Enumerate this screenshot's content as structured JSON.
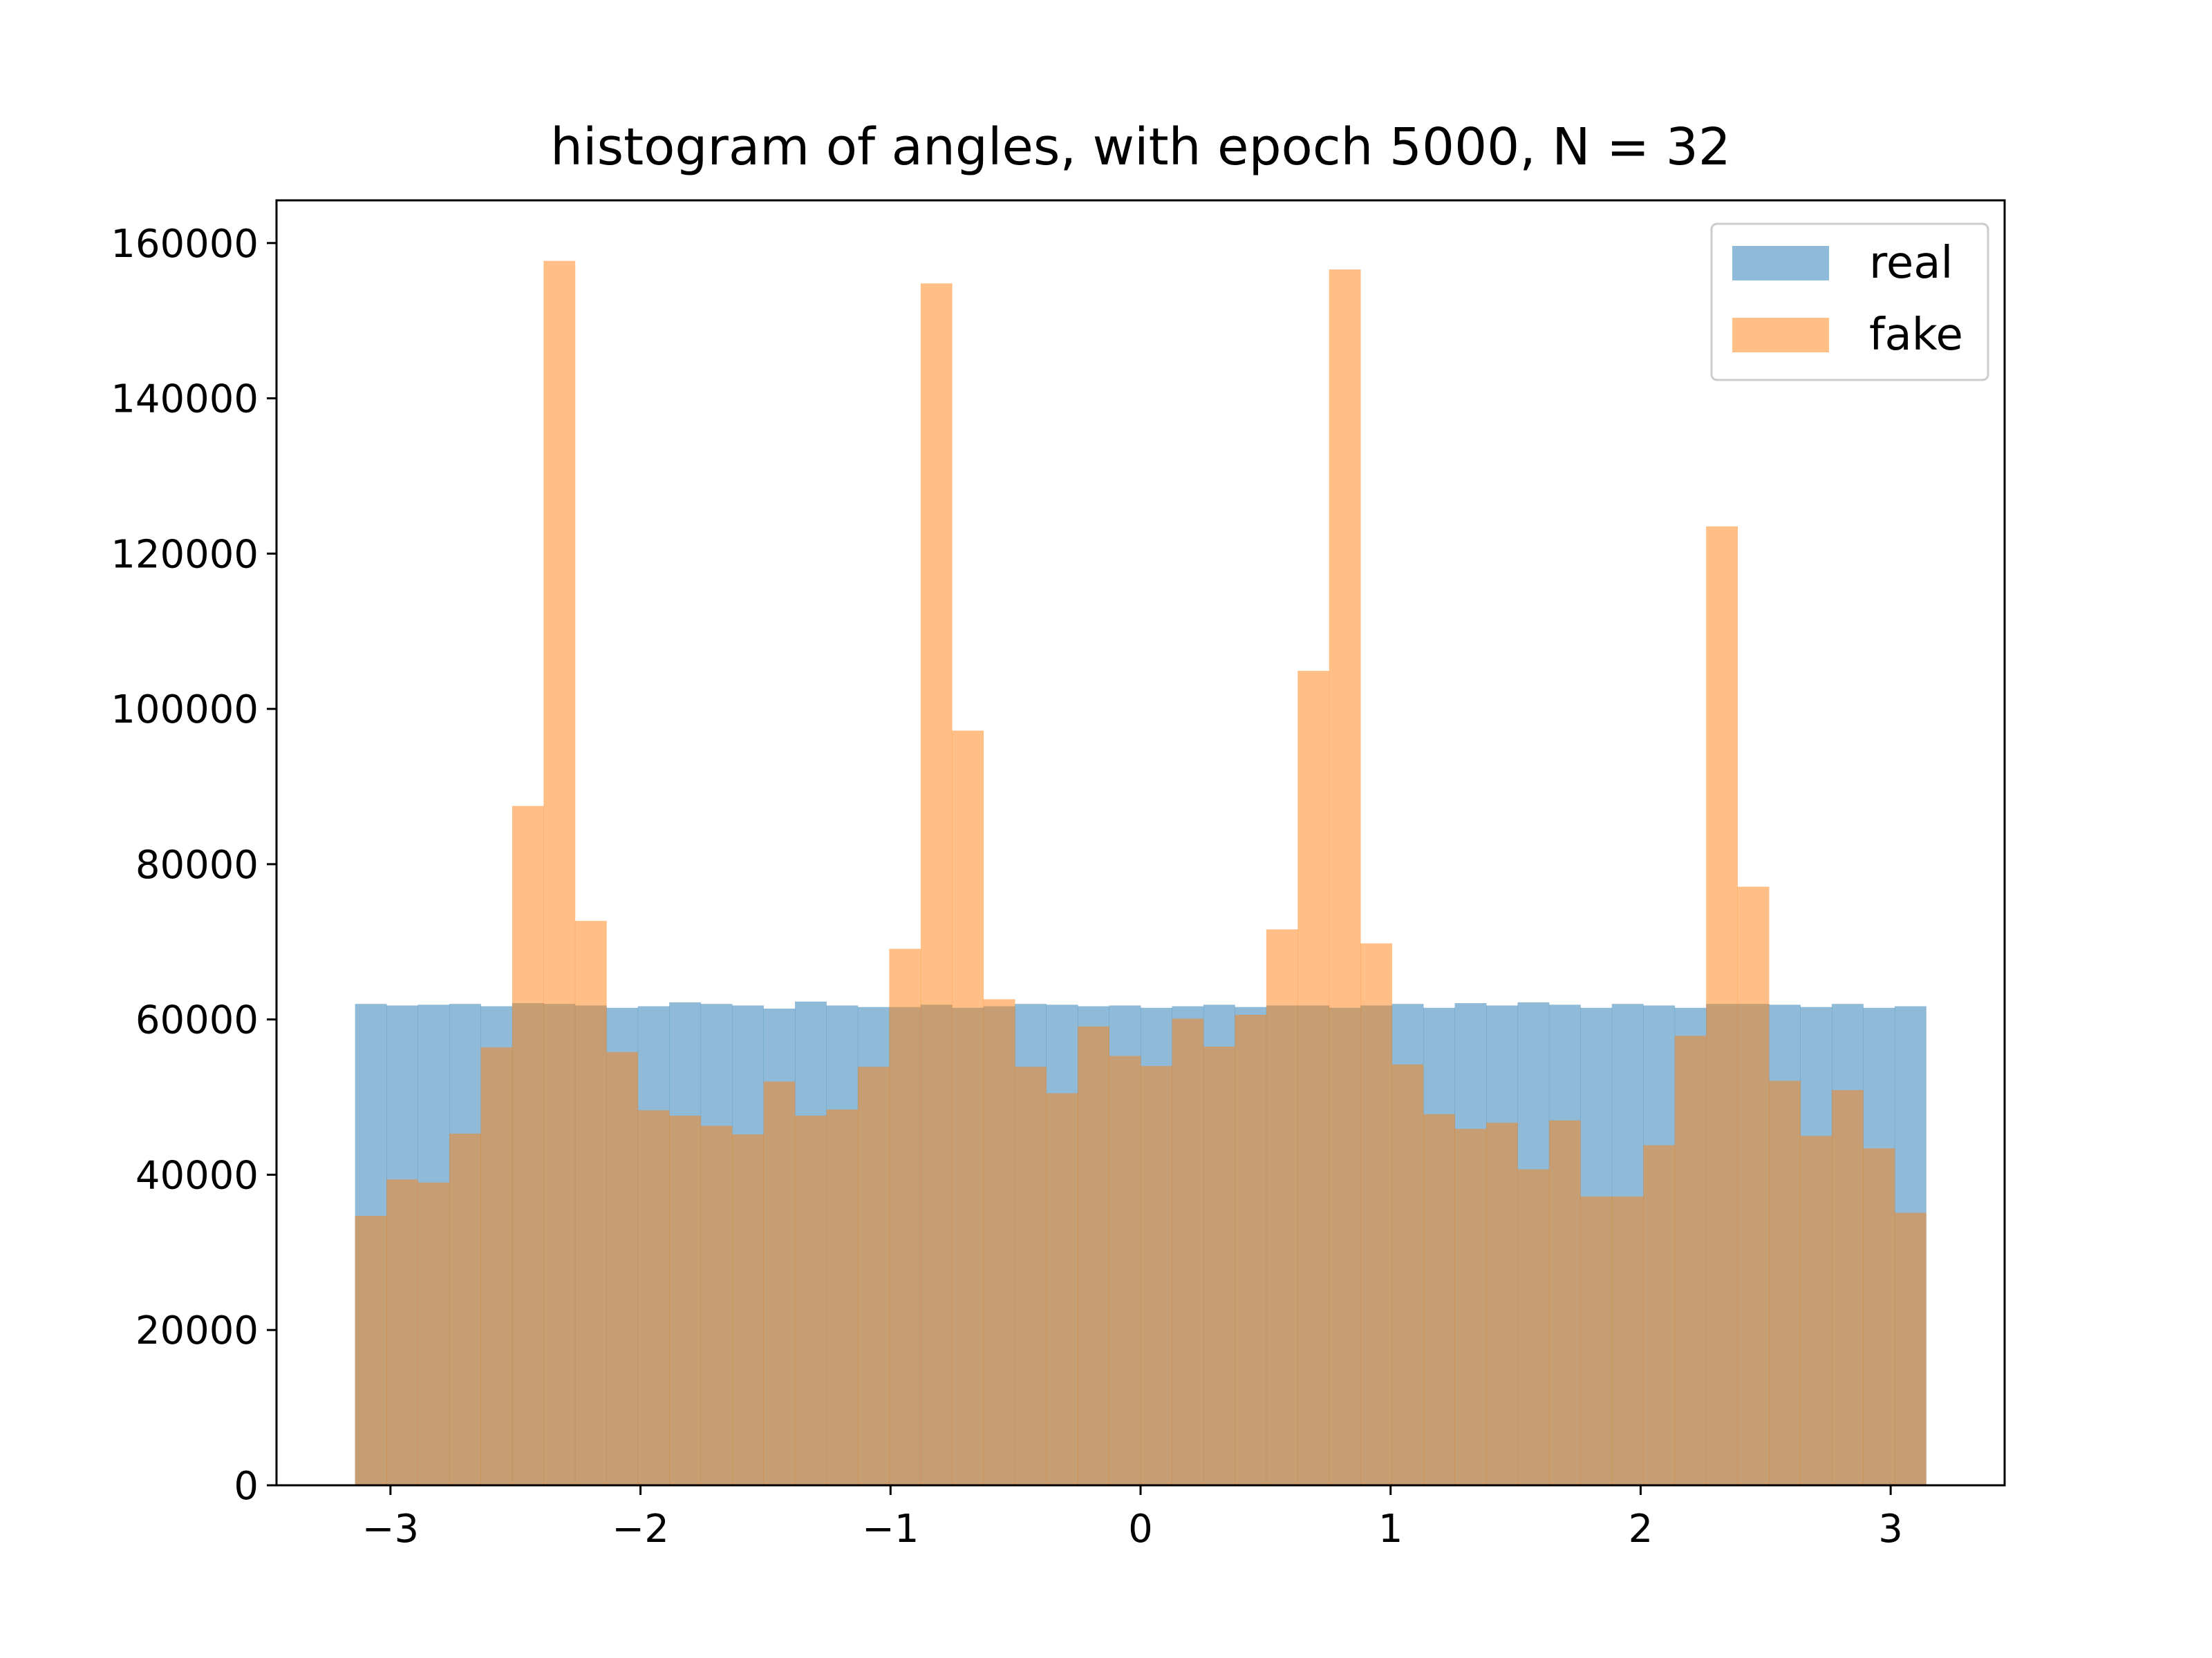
{
  "chart_data": {
    "type": "bar",
    "title": "histogram of angles, with epoch 5000, N = 32",
    "xlabel": "",
    "ylabel": "",
    "xlim": [
      -3.4558,
      3.4558
    ],
    "ylim": [
      0,
      165500
    ],
    "x_ticks": [
      -3,
      -2,
      -1,
      0,
      1,
      2,
      3
    ],
    "x_tick_labels": [
      "−3",
      "−2",
      "−1",
      "0",
      "1",
      "2",
      "3"
    ],
    "y_ticks": [
      0,
      20000,
      40000,
      60000,
      80000,
      100000,
      120000,
      140000,
      160000
    ],
    "y_tick_labels": [
      "0",
      "20000",
      "40000",
      "60000",
      "80000",
      "100000",
      "120000",
      "140000",
      "160000"
    ],
    "bins": {
      "start": -3.1416,
      "end": 3.1416,
      "count": 50
    },
    "grid": false,
    "legend_position": "upper right",
    "series": [
      {
        "name": "real",
        "color": "#1f77b4",
        "opacity": 0.5,
        "values": [
          62000,
          61800,
          61900,
          62000,
          61700,
          62100,
          62000,
          61800,
          61500,
          61700,
          62200,
          62000,
          61800,
          61400,
          62300,
          61800,
          61600,
          61600,
          61900,
          61500,
          61700,
          62000,
          61900,
          61700,
          61800,
          61500,
          61700,
          61900,
          61600,
          61800,
          61800,
          61500,
          61800,
          62000,
          61500,
          62100,
          61800,
          62200,
          61900,
          61500,
          62000,
          61800,
          61500,
          62000,
          62000,
          61900,
          61600,
          62000,
          61500,
          61700
        ]
      },
      {
        "name": "fake",
        "color": "#ff7f0e",
        "opacity": 0.5,
        "values": [
          34700,
          39400,
          39000,
          45300,
          56400,
          87500,
          157700,
          72700,
          55800,
          48300,
          47600,
          46300,
          45200,
          52000,
          47600,
          48400,
          53900,
          69100,
          154800,
          97200,
          62600,
          53900,
          50500,
          59100,
          55300,
          54000,
          60100,
          56500,
          60600,
          71600,
          104900,
          156600,
          69800,
          54200,
          47800,
          45900,
          46700,
          40700,
          47000,
          37200,
          37200,
          43800,
          57900,
          123500,
          77100,
          52100,
          45000,
          50900,
          43400,
          35100
        ]
      }
    ]
  }
}
